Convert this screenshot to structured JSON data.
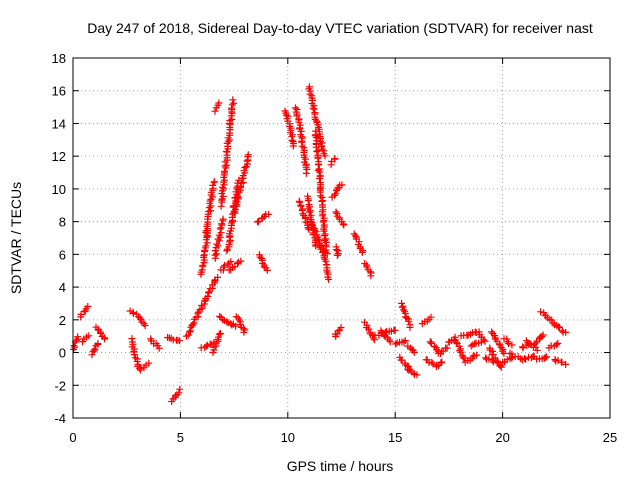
{
  "chart_data": {
    "type": "scatter",
    "title": "Day 247 of 2018, Sidereal Day-to-day VTEC variation (SDTVAR) for receiver nast",
    "xlabel": "GPS time / hours",
    "ylabel": "SDTVAR / TECUs",
    "xlim": [
      0,
      25
    ],
    "ylim": [
      -4,
      18
    ],
    "xticks": [
      0,
      5,
      10,
      15,
      20,
      25
    ],
    "yticks": [
      -4,
      -2,
      0,
      2,
      4,
      6,
      8,
      10,
      12,
      14,
      16,
      18
    ],
    "grid": true,
    "marker": "+",
    "color": "#ff0000",
    "segments": [
      {
        "x": [
          0.0,
          0.25
        ],
        "y": [
          0.2,
          1.0
        ]
      },
      {
        "x": [
          0.35,
          0.7
        ],
        "y": [
          2.2,
          2.8
        ]
      },
      {
        "x": [
          0.45,
          0.7
        ],
        "y": [
          0.7,
          1.0
        ]
      },
      {
        "x": [
          0.9,
          1.2
        ],
        "y": [
          -0.1,
          0.6
        ]
      },
      {
        "x": [
          1.1,
          1.5
        ],
        "y": [
          1.6,
          0.8
        ]
      },
      {
        "x": [
          2.7,
          3.4
        ],
        "y": [
          2.6,
          1.7
        ]
      },
      {
        "x": [
          2.7,
          3.1
        ],
        "y": [
          0.8,
          -1.1
        ]
      },
      {
        "x": [
          3.1,
          3.5
        ],
        "y": [
          -1.0,
          -0.7
        ]
      },
      {
        "x": [
          3.6,
          4.0
        ],
        "y": [
          0.8,
          0.3
        ]
      },
      {
        "x": [
          4.4,
          5.0
        ],
        "y": [
          0.9,
          0.7
        ]
      },
      {
        "x": [
          4.6,
          4.95
        ],
        "y": [
          -3.0,
          -2.3
        ]
      },
      {
        "x": [
          5.3,
          6.7
        ],
        "y": [
          1.0,
          4.6
        ]
      },
      {
        "x": [
          6.0,
          6.6
        ],
        "y": [
          0.3,
          0.6
        ]
      },
      {
        "x": [
          6.0,
          6.3
        ],
        "y": [
          4.8,
          7.4
        ]
      },
      {
        "x": [
          6.2,
          6.55
        ],
        "y": [
          7.2,
          10.5
        ]
      },
      {
        "x": [
          6.6,
          7.0
        ],
        "y": [
          5.8,
          8.2
        ]
      },
      {
        "x": [
          6.6,
          6.8
        ],
        "y": [
          14.8,
          15.2
        ]
      },
      {
        "x": [
          6.9,
          7.45
        ],
        "y": [
          9.0,
          15.4
        ]
      },
      {
        "x": [
          6.9,
          7.3
        ],
        "y": [
          5.0,
          5.6
        ]
      },
      {
        "x": [
          7.3,
          7.8
        ],
        "y": [
          5.0,
          5.6
        ]
      },
      {
        "x": [
          7.2,
          7.7
        ],
        "y": [
          6.2,
          10.5
        ]
      },
      {
        "x": [
          7.5,
          8.2
        ],
        "y": [
          8.5,
          12.1
        ]
      },
      {
        "x": [
          6.8,
          7.6
        ],
        "y": [
          2.2,
          1.6
        ]
      },
      {
        "x": [
          6.5,
          6.9
        ],
        "y": [
          0.0,
          1.2
        ]
      },
      {
        "x": [
          7.6,
          8.0
        ],
        "y": [
          2.2,
          1.2
        ]
      },
      {
        "x": [
          8.6,
          9.1
        ],
        "y": [
          8.0,
          8.5
        ]
      },
      {
        "x": [
          8.7,
          9.0
        ],
        "y": [
          6.0,
          5.0
        ]
      },
      {
        "x": [
          9.9,
          10.3
        ],
        "y": [
          14.8,
          12.6
        ]
      },
      {
        "x": [
          10.4,
          10.9
        ],
        "y": [
          15.0,
          11.0
        ]
      },
      {
        "x": [
          10.5,
          11.0
        ],
        "y": [
          9.3,
          7.5
        ]
      },
      {
        "x": [
          10.9,
          11.3
        ],
        "y": [
          9.5,
          6.5
        ]
      },
      {
        "x": [
          11.0,
          11.7
        ],
        "y": [
          16.2,
          12.0
        ]
      },
      {
        "x": [
          11.3,
          11.8
        ],
        "y": [
          13.5,
          6.0
        ]
      },
      {
        "x": [
          11.1,
          11.6
        ],
        "y": [
          8.0,
          6.2
        ]
      },
      {
        "x": [
          11.6,
          11.9
        ],
        "y": [
          6.5,
          4.5
        ]
      },
      {
        "x": [
          12.1,
          12.5
        ],
        "y": [
          9.5,
          10.3
        ]
      },
      {
        "x": [
          12.2,
          12.6
        ],
        "y": [
          8.6,
          7.8
        ]
      },
      {
        "x": [
          12.2,
          12.5
        ],
        "y": [
          1.0,
          1.5
        ]
      },
      {
        "x": [
          12.0,
          12.2
        ],
        "y": [
          11.5,
          11.9
        ]
      },
      {
        "x": [
          12.25,
          12.35
        ],
        "y": [
          6.5,
          5.9
        ]
      },
      {
        "x": [
          13.1,
          13.5
        ],
        "y": [
          7.3,
          6.1
        ]
      },
      {
        "x": [
          13.6,
          13.9
        ],
        "y": [
          5.5,
          4.7
        ]
      },
      {
        "x": [
          13.6,
          14.0
        ],
        "y": [
          1.8,
          0.8
        ]
      },
      {
        "x": [
          14.0,
          15.0
        ],
        "y": [
          1.0,
          1.4
        ]
      },
      {
        "x": [
          14.3,
          14.8
        ],
        "y": [
          1.3,
          0.7
        ]
      },
      {
        "x": [
          15.0,
          15.5
        ],
        "y": [
          0.5,
          0.7
        ]
      },
      {
        "x": [
          15.2,
          15.7
        ],
        "y": [
          -0.3,
          -1.0
        ]
      },
      {
        "x": [
          15.3,
          15.7
        ],
        "y": [
          3.0,
          1.6
        ]
      },
      {
        "x": [
          15.6,
          15.9
        ],
        "y": [
          0.4,
          0.0
        ]
      },
      {
        "x": [
          15.6,
          16.0
        ],
        "y": [
          -1.0,
          -1.4
        ]
      },
      {
        "x": [
          16.3,
          16.7
        ],
        "y": [
          1.8,
          2.1
        ]
      },
      {
        "x": [
          16.4,
          16.9
        ],
        "y": [
          -0.4,
          -0.8
        ]
      },
      {
        "x": [
          16.6,
          17.0
        ],
        "y": [
          0.7,
          0.1
        ]
      },
      {
        "x": [
          16.9,
          17.2
        ],
        "y": [
          -0.8,
          -0.6
        ]
      },
      {
        "x": [
          17.0,
          17.4
        ],
        "y": [
          -0.1,
          0.3
        ]
      },
      {
        "x": [
          17.5,
          17.7
        ],
        "y": [
          0.6,
          0.8
        ]
      },
      {
        "x": [
          17.8,
          18.2
        ],
        "y": [
          0.9,
          -0.4
        ]
      },
      {
        "x": [
          18.1,
          18.9
        ],
        "y": [
          1.0,
          1.3
        ]
      },
      {
        "x": [
          18.3,
          18.8
        ],
        "y": [
          -0.6,
          -0.1
        ]
      },
      {
        "x": [
          18.5,
          19.0
        ],
        "y": [
          0.4,
          0.6
        ]
      },
      {
        "x": [
          18.9,
          19.2
        ],
        "y": [
          1.1,
          0.7
        ]
      },
      {
        "x": [
          19.2,
          19.7
        ],
        "y": [
          -0.3,
          -0.6
        ]
      },
      {
        "x": [
          19.4,
          19.9
        ],
        "y": [
          0.3,
          -0.9
        ]
      },
      {
        "x": [
          19.5,
          20.1
        ],
        "y": [
          1.3,
          -0.1
        ]
      },
      {
        "x": [
          19.9,
          20.4
        ],
        "y": [
          -0.7,
          -0.3
        ]
      },
      {
        "x": [
          20.1,
          20.4
        ],
        "y": [
          0.9,
          0.5
        ]
      },
      {
        "x": [
          20.3,
          20.9
        ],
        "y": [
          -0.1,
          -0.4
        ]
      },
      {
        "x": [
          20.9,
          21.3
        ],
        "y": [
          0.3,
          0.5
        ]
      },
      {
        "x": [
          21.0,
          21.5
        ],
        "y": [
          -0.4,
          -0.2
        ]
      },
      {
        "x": [
          21.1,
          21.6
        ],
        "y": [
          0.7,
          0.2
        ]
      },
      {
        "x": [
          21.5,
          21.9
        ],
        "y": [
          0.5,
          1.1
        ]
      },
      {
        "x": [
          21.6,
          22.1
        ],
        "y": [
          -0.4,
          -0.3
        ]
      },
      {
        "x": [
          21.8,
          22.9
        ],
        "y": [
          2.5,
          1.2
        ]
      },
      {
        "x": [
          22.2,
          22.6
        ],
        "y": [
          0.3,
          0.6
        ]
      },
      {
        "x": [
          22.4,
          22.9
        ],
        "y": [
          -0.4,
          -0.7
        ]
      }
    ]
  }
}
